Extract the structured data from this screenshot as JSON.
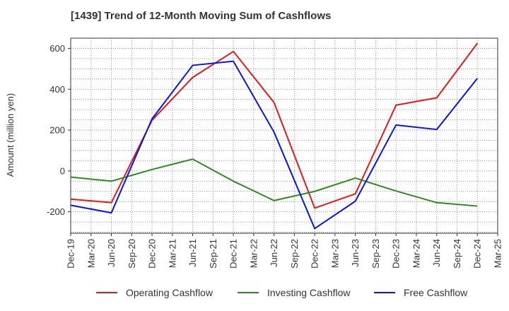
{
  "chart_data": {
    "type": "line",
    "title": "[1439]  Trend of 12-Month Moving Sum of Cashflows",
    "xlabel": "",
    "ylabel": "Amount (million yen)",
    "categories": [
      "Dec-19",
      "Mar-20",
      "Jun-20",
      "Sep-20",
      "Dec-20",
      "Mar-21",
      "Jun-21",
      "Sep-21",
      "Dec-21",
      "Mar-22",
      "Jun-22",
      "Sep-22",
      "Dec-22",
      "Mar-23",
      "Jun-23",
      "Sep-23",
      "Dec-23",
      "Mar-24",
      "Jun-24",
      "Sep-24",
      "Dec-24",
      "Mar-25"
    ],
    "ylim": [
      -305,
      650
    ],
    "yticks": [
      -200,
      0,
      200,
      400,
      600
    ],
    "ytick_labels": [
      "-200",
      "0",
      "200",
      "400",
      "600"
    ],
    "grid": true,
    "legend_position": "bottom",
    "series": [
      {
        "name": "Operating Cashflow",
        "color": "#e31a1c",
        "values": [
          -138,
          null,
          -155,
          null,
          248,
          null,
          458,
          null,
          585,
          null,
          335,
          null,
          -182,
          null,
          -112,
          null,
          322,
          null,
          358,
          null,
          625,
          null
        ]
      },
      {
        "name": "Investing Cashflow",
        "color": "#2e8b22",
        "values": [
          -30,
          null,
          -50,
          null,
          7,
          null,
          58,
          null,
          -50,
          null,
          -145,
          null,
          -100,
          null,
          -35,
          null,
          -98,
          null,
          -155,
          null,
          -172,
          null
        ]
      },
      {
        "name": "Free Cashflow",
        "color": "#0a14e6",
        "values": [
          -168,
          null,
          -205,
          null,
          255,
          null,
          517,
          null,
          537,
          null,
          190,
          null,
          -282,
          null,
          -148,
          null,
          225,
          null,
          203,
          null,
          453,
          null
        ]
      }
    ]
  }
}
